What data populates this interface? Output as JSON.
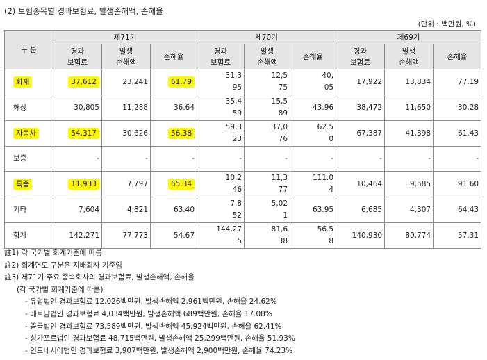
{
  "title": "(2) 보험종목별 경과보험료, 발생손해액, 손해율",
  "unit": "(단위 : 백만원, %)",
  "table": {
    "corner": "구 분",
    "periods": [
      "제71기",
      "제70기",
      "제69기"
    ],
    "subheaders": [
      "경과\n보험료",
      "발생\n손해액",
      "손해율"
    ],
    "rows": [
      {
        "label": "화재",
        "p71": [
          "37,612",
          "23,241",
          "61.79"
        ],
        "p70": [
          "31,3\n95",
          "12,5\n75",
          "40,\n05"
        ],
        "p69": [
          "17,922",
          "13,834",
          "77.19"
        ]
      },
      {
        "label": "해상",
        "p71": [
          "30,805",
          "11,288",
          "36.64"
        ],
        "p70": [
          "35,4\n59",
          "15,5\n89",
          "43.96"
        ],
        "p69": [
          "38,472",
          "11,650",
          "30.28"
        ]
      },
      {
        "label": "자동차",
        "p71": [
          "54,317",
          "30,626",
          "56.38"
        ],
        "p70": [
          "59,3\n23",
          "37,0\n76",
          "62.5\n0"
        ],
        "p69": [
          "67,387",
          "41,398",
          "61.43"
        ]
      },
      {
        "label": "보증",
        "p71": [
          "-",
          "-",
          "-"
        ],
        "p70": [
          "-",
          "-",
          "-"
        ],
        "p69": [
          "-",
          "-",
          "-"
        ]
      },
      {
        "label": "특종",
        "p71": [
          "11,933",
          "7,797",
          "65.34"
        ],
        "p70": [
          "10,2\n46",
          "11,3\n77",
          "111.0\n4"
        ],
        "p69": [
          "10,464",
          "9,585",
          "91.60"
        ]
      },
      {
        "label": "기타",
        "p71": [
          "7,604",
          "4,821",
          "63.40"
        ],
        "p70": [
          "7,8\n52",
          "5,02\n1",
          "63.95"
        ],
        "p69": [
          "6,685",
          "4,307",
          "64.43"
        ]
      },
      {
        "label": "합계",
        "p71": [
          "142,271",
          "77,773",
          "54.67"
        ],
        "p70": [
          "144,27\n5",
          "81,6\n38",
          "56.5\n8"
        ],
        "p69": [
          "140,930",
          "80,774",
          "57.31"
        ]
      }
    ]
  },
  "notes": {
    "n1": "註1) 각 국가별 회계기준에 따름",
    "n2": "註2) 회계연도 구분은 지배회사 기준임",
    "n3": "註3) 제71기 주요 종속회사의 경과보험료, 발생손해액, 손해율",
    "n3a": "(각 국가별 회계기준에 따름)",
    "items": [
      "- 유럽법인 경과보험료 12,026백만원, 발생손해액 2,961백만원, 손해율 24.62%",
      "- 베트남법인 경과보험료 4,034백만원, 발생손해액 689백만원, 손해율 17.08%",
      "- 중국법인 경과보험료 73,589백만원, 발생손해액 45,924백만원, 손해율 62.41%",
      "- 싱가포르법인 경과보험료 48,715백만원, 발생손해액 25,299백만원, 손해율 51.93%",
      "- 인도네시아법인 경과보험료 3,907백만원, 발생손해액 2,900백만원, 손해율 74.23%"
    ]
  },
  "highlight_color": "#fff700"
}
